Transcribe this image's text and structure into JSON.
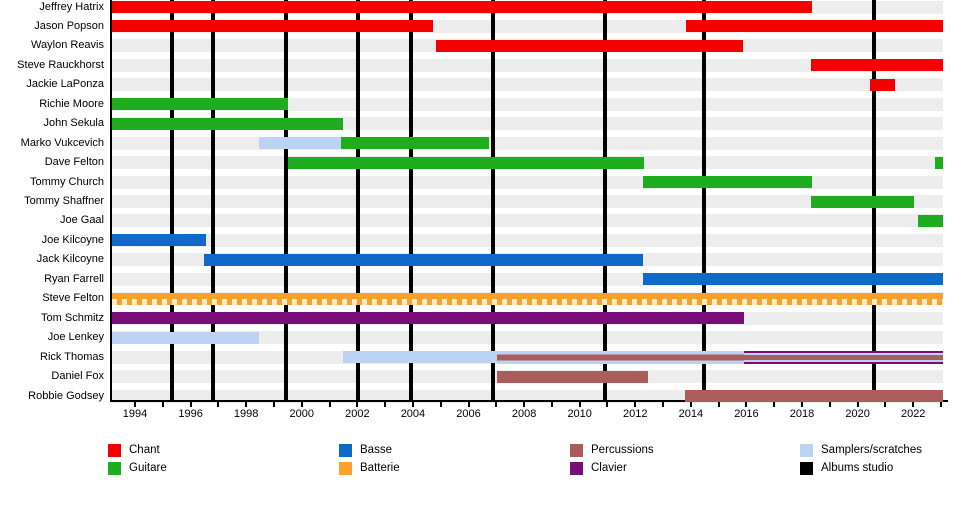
{
  "chart_data": {
    "type": "gantt-timeline",
    "title": "",
    "x_domain": [
      1993.1,
      2023.0
    ],
    "tick_years": [
      1994,
      1995,
      1996,
      1997,
      1998,
      1999,
      2000,
      2001,
      2002,
      2003,
      2004,
      2005,
      2006,
      2007,
      2008,
      2009,
      2010,
      2011,
      2012,
      2013,
      2014,
      2015,
      2016,
      2017,
      2018,
      2019,
      2020,
      2021,
      2022,
      2023
    ],
    "labeled_tick_years": [
      1994,
      1996,
      1998,
      2000,
      2002,
      2004,
      2006,
      2008,
      2010,
      2012,
      2014,
      2016,
      2018,
      2020,
      2022
    ],
    "role_colors": {
      "chant": "#f40000",
      "guitare": "#1fad1f",
      "basse": "#1068c8",
      "batterie": "#f9a12d",
      "percussions": "#ad5c5c",
      "clavier": "#7a0d7a",
      "samplers": "#bdd3f3",
      "albums": "#000000"
    },
    "track_color": "#ededed",
    "members": [
      {
        "name": "Jeffrey Hatrix",
        "bars": [
          {
            "roles": [
              "chant"
            ],
            "start": 1993.1,
            "end": 2018.3
          }
        ]
      },
      {
        "name": "Jason Popson",
        "bars": [
          {
            "roles": [
              "chant"
            ],
            "start": 1993.1,
            "end": 2004.65
          },
          {
            "roles": [
              "chant"
            ],
            "start": 2013.75,
            "end": 2023.0
          }
        ]
      },
      {
        "name": "Waylon Reavis",
        "bars": [
          {
            "roles": [
              "chant"
            ],
            "start": 2004.75,
            "end": 2015.8
          }
        ]
      },
      {
        "name": "Steve Rauckhorst",
        "bars": [
          {
            "roles": [
              "chant"
            ],
            "start": 2018.25,
            "end": 2023.0
          }
        ]
      },
      {
        "name": "Jackie LaPonza",
        "bars": [
          {
            "roles": [
              "chant"
            ],
            "start": 2020.37,
            "end": 2021.27
          }
        ]
      },
      {
        "name": "Richie Moore",
        "bars": [
          {
            "roles": [
              "guitare"
            ],
            "start": 1993.1,
            "end": 1999.45
          }
        ]
      },
      {
        "name": "John Sekula",
        "bars": [
          {
            "roles": [
              "guitare"
            ],
            "start": 1993.1,
            "end": 2001.4
          }
        ]
      },
      {
        "name": "Marko Vukcevich",
        "bars": [
          {
            "roles": [
              "samplers"
            ],
            "start": 1998.4,
            "end": 2001.35
          },
          {
            "roles": [
              "guitare"
            ],
            "start": 2001.35,
            "end": 2006.65
          }
        ]
      },
      {
        "name": "Dave Felton",
        "bars": [
          {
            "roles": [
              "guitare"
            ],
            "start": 1999.45,
            "end": 2012.25
          },
          {
            "roles": [
              "guitare"
            ],
            "start": 2022.7,
            "end": 2023.0
          }
        ]
      },
      {
        "name": "Tommy Church",
        "bars": [
          {
            "roles": [
              "guitare"
            ],
            "start": 2012.2,
            "end": 2018.3
          }
        ]
      },
      {
        "name": "Tommy Shaffner",
        "bars": [
          {
            "roles": [
              "guitare"
            ],
            "start": 2018.25,
            "end": 2021.95
          }
        ]
      },
      {
        "name": "Joe Gaal",
        "bars": [
          {
            "roles": [
              "guitare"
            ],
            "start": 2022.1,
            "end": 2023.0
          }
        ]
      },
      {
        "name": "Joe Kilcoyne",
        "bars": [
          {
            "roles": [
              "basse"
            ],
            "start": 1993.1,
            "end": 1996.5
          }
        ]
      },
      {
        "name": "Jack Kilcoyne",
        "bars": [
          {
            "roles": [
              "basse"
            ],
            "start": 1996.4,
            "end": 2012.2
          }
        ]
      },
      {
        "name": "Ryan Farrell",
        "bars": [
          {
            "roles": [
              "basse"
            ],
            "start": 2012.2,
            "end": 2023.0
          }
        ]
      },
      {
        "name": "Steve Felton",
        "bars": [
          {
            "roles": [
              "batterie"
            ],
            "start": 1993.1,
            "end": 2023.0,
            "pattern": "ticks"
          }
        ]
      },
      {
        "name": "Tom Schmitz",
        "bars": [
          {
            "roles": [
              "clavier"
            ],
            "start": 1993.1,
            "end": 2015.85
          }
        ]
      },
      {
        "name": "Joe Lenkey",
        "bars": [
          {
            "roles": [
              "samplers"
            ],
            "start": 1993.1,
            "end": 1998.4
          }
        ]
      },
      {
        "name": "Rick Thomas",
        "bars": [
          {
            "roles": [
              "samplers"
            ],
            "start": 2001.4,
            "end": 2006.95
          },
          {
            "roles": [
              "samplers",
              "percussions"
            ],
            "start": 2006.95,
            "end": 2015.85
          },
          {
            "roles": [
              "clavier",
              "samplers",
              "percussions"
            ],
            "start": 2015.85,
            "end": 2023.0
          }
        ]
      },
      {
        "name": "Daniel Fox",
        "bars": [
          {
            "roles": [
              "percussions"
            ],
            "start": 2006.95,
            "end": 2012.4
          }
        ]
      },
      {
        "name": "Robbie Godsey",
        "bars": [
          {
            "roles": [
              "percussions"
            ],
            "start": 2013.7,
            "end": 2023.0
          }
        ]
      }
    ],
    "album_studio_lines": [
      1995.25,
      1996.75,
      1999.35,
      2001.95,
      2003.85,
      2006.8,
      2010.85,
      2014.4,
      2020.5
    ],
    "legend": [
      {
        "label": "Chant",
        "role": "chant"
      },
      {
        "label": "Guitare",
        "role": "guitare"
      },
      {
        "label": "Basse",
        "role": "basse"
      },
      {
        "label": "Batterie",
        "role": "batterie"
      },
      {
        "label": "Percussions",
        "role": "percussions"
      },
      {
        "label": "Clavier",
        "role": "clavier"
      },
      {
        "label": "Samplers/scratches",
        "role": "samplers"
      },
      {
        "label": "Albums studio",
        "role": "albums"
      }
    ],
    "legend_position": "bottom"
  }
}
